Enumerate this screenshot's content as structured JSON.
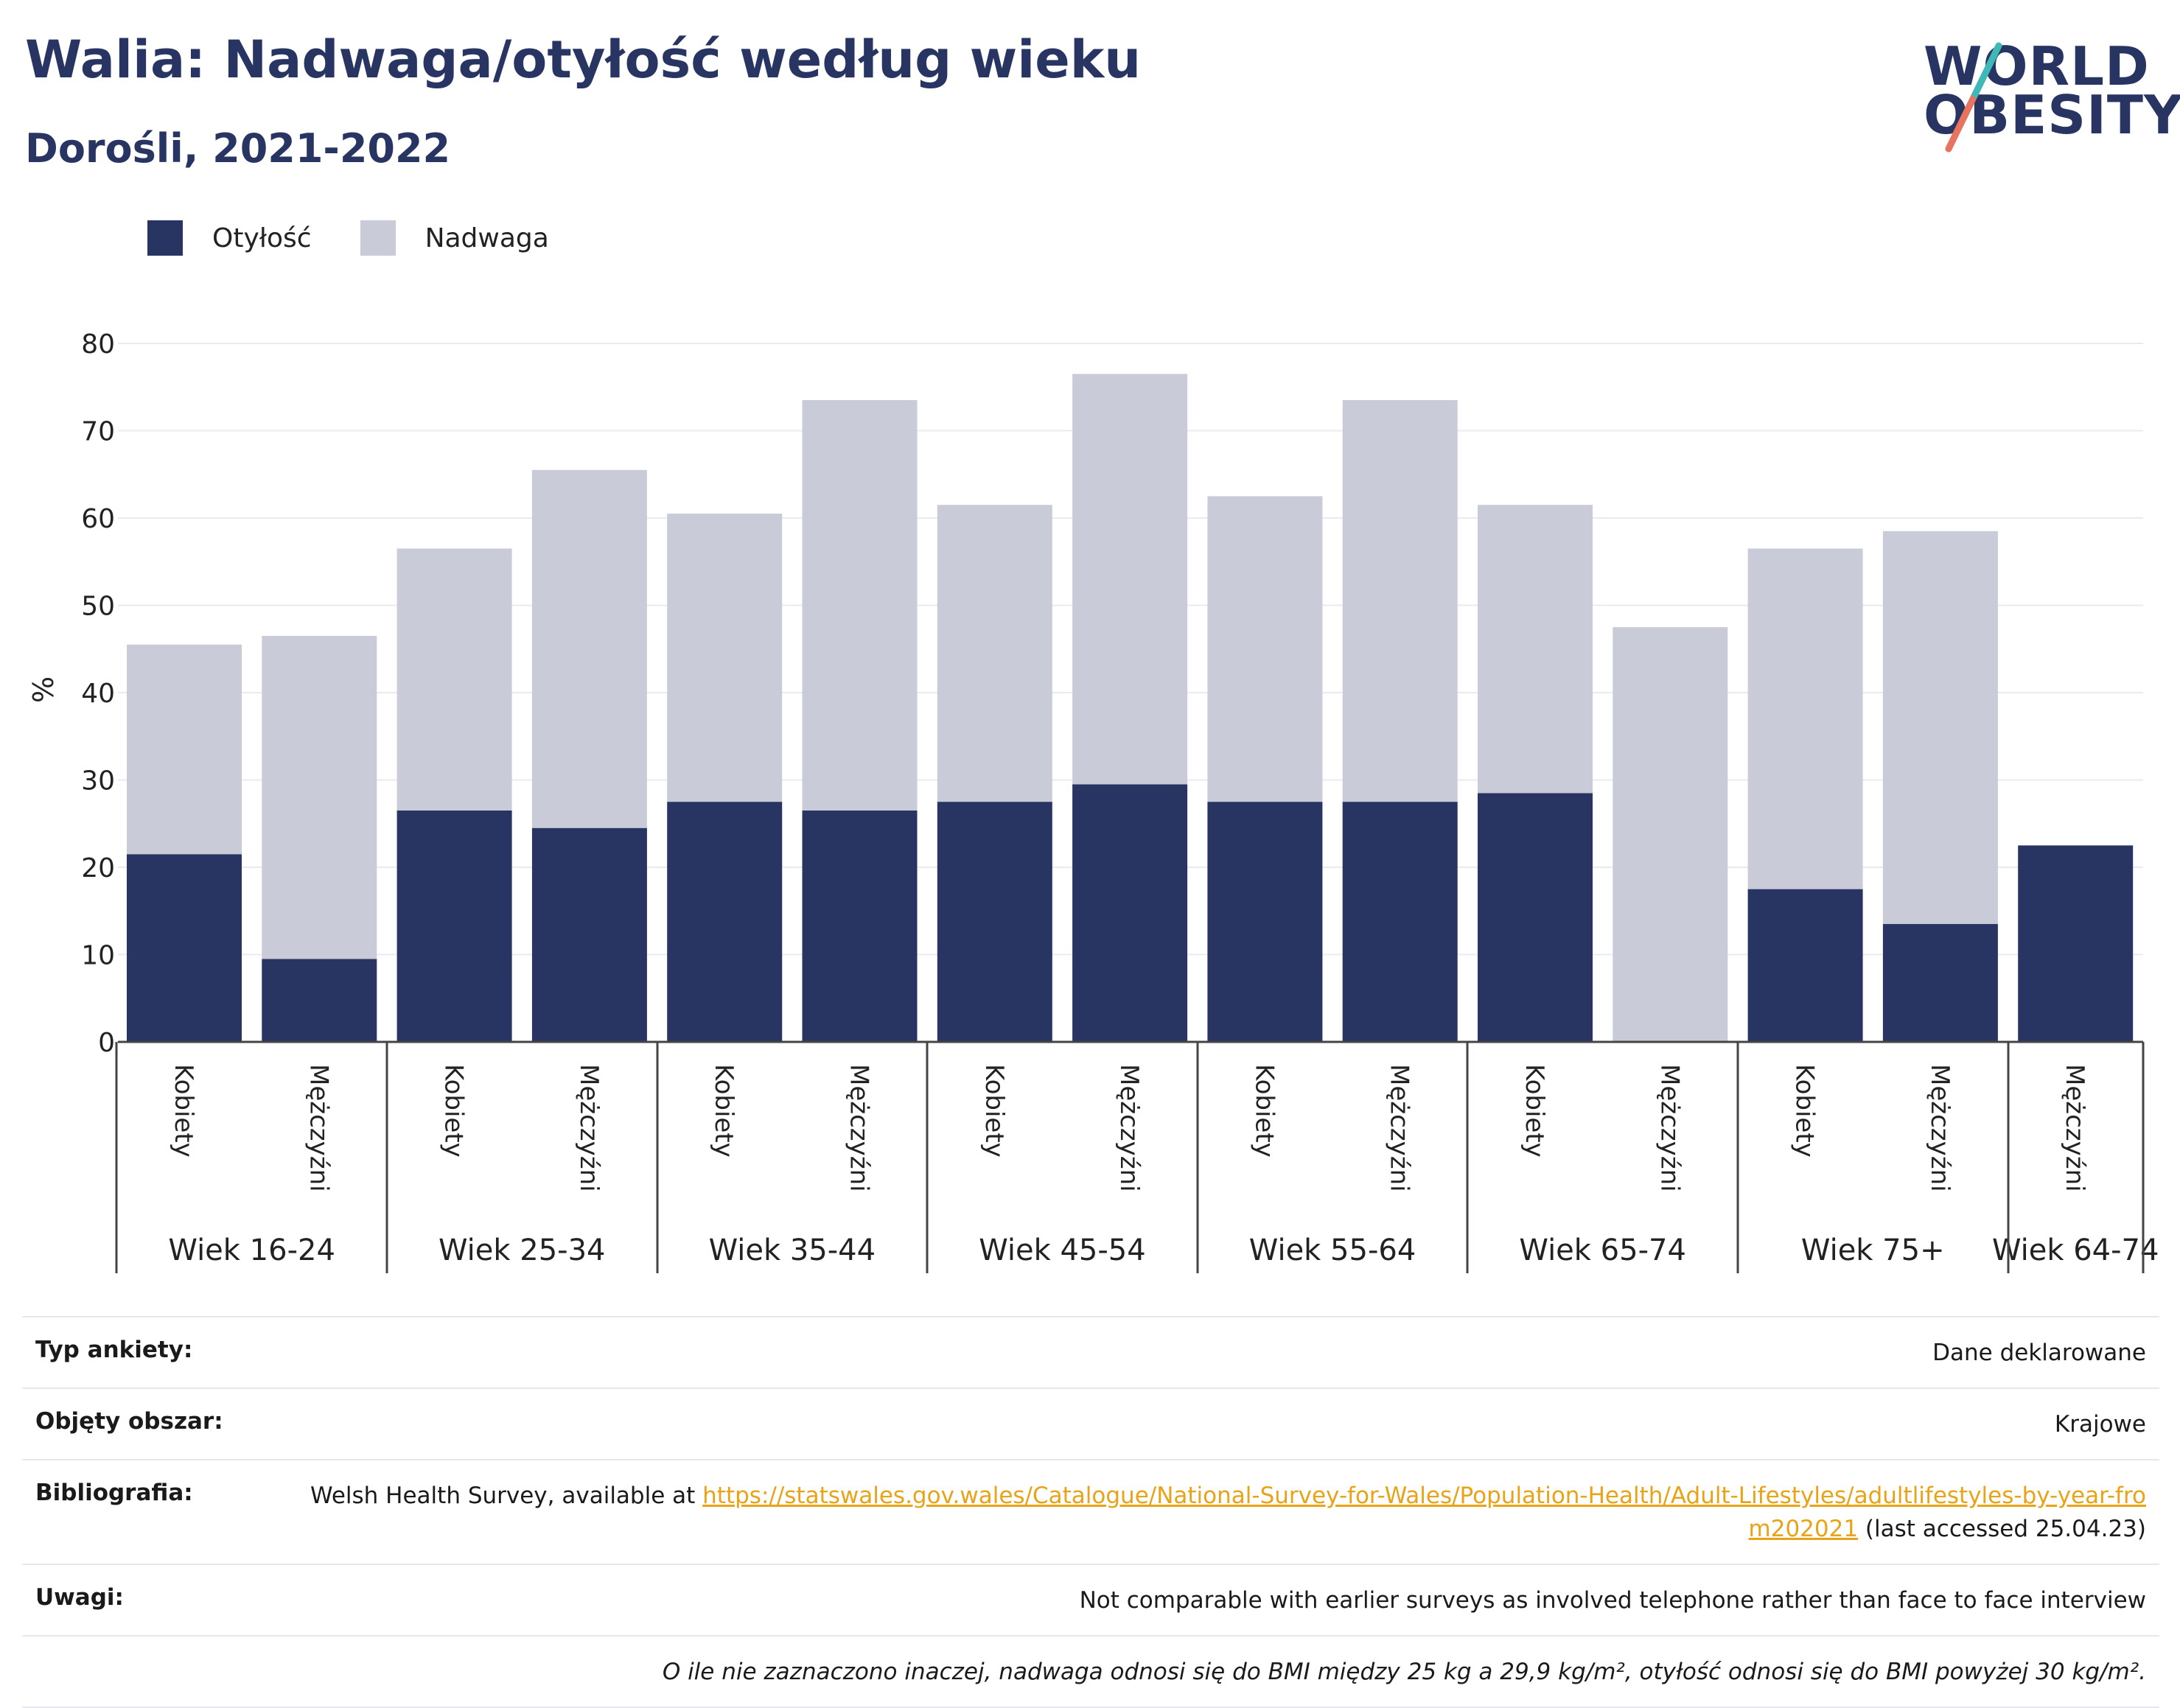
{
  "header": {
    "title": "Walia: Nadwaga/otyłość według wieku",
    "subtitle": "Dorośli, 2021-2022"
  },
  "logo": {
    "line1": "WORLD",
    "line2": "OBESITY"
  },
  "legend": [
    {
      "label": "Otyłość",
      "color": "#283462"
    },
    {
      "label": "Nadwaga",
      "color": "#c9ccd8"
    }
  ],
  "chart_data": {
    "type": "bar",
    "stacked": true,
    "ylabel": "%",
    "ylim": [
      0,
      80
    ],
    "yticks": [
      0,
      10,
      20,
      30,
      40,
      50,
      60,
      70,
      80
    ],
    "grid": true,
    "legend_position": "top-left",
    "groups": [
      {
        "label": "Wiek 16-24",
        "bars": [
          {
            "sex": "Kobiety",
            "obesity": 21.5,
            "overweight": 24
          },
          {
            "sex": "Mężczyźni",
            "obesity": 9.5,
            "overweight": 37
          }
        ]
      },
      {
        "label": "Wiek 25-34",
        "bars": [
          {
            "sex": "Kobiety",
            "obesity": 26.5,
            "overweight": 30
          },
          {
            "sex": "Mężczyźni",
            "obesity": 24.5,
            "overweight": 41
          }
        ]
      },
      {
        "label": "Wiek 35-44",
        "bars": [
          {
            "sex": "Kobiety",
            "obesity": 27.5,
            "overweight": 33
          },
          {
            "sex": "Mężczyźni",
            "obesity": 26.5,
            "overweight": 47
          }
        ]
      },
      {
        "label": "Wiek 45-54",
        "bars": [
          {
            "sex": "Kobiety",
            "obesity": 27.5,
            "overweight": 34
          },
          {
            "sex": "Mężczyźni",
            "obesity": 29.5,
            "overweight": 47
          }
        ]
      },
      {
        "label": "Wiek 55-64",
        "bars": [
          {
            "sex": "Kobiety",
            "obesity": 27.5,
            "overweight": 35
          },
          {
            "sex": "Mężczyźni",
            "obesity": 27.5,
            "overweight": 46
          }
        ]
      },
      {
        "label": "Wiek 65-74",
        "bars": [
          {
            "sex": "Kobiety",
            "obesity": 28.5,
            "overweight": 33
          },
          {
            "sex": "Mężczyźni",
            "obesity": 0,
            "overweight": 47.5
          }
        ]
      },
      {
        "label": "Wiek 75+",
        "bars": [
          {
            "sex": "Kobiety",
            "obesity": 17.5,
            "overweight": 39
          },
          {
            "sex": "Mężczyźni",
            "obesity": 13.5,
            "overweight": 45
          }
        ]
      },
      {
        "label": "Wiek 64-74",
        "bars": [
          {
            "sex": "Mężczyźni",
            "obesity": 22.5,
            "overweight": 0
          }
        ]
      }
    ]
  },
  "info": {
    "survey_type": {
      "label": "Typ ankiety:",
      "value": "Dane deklarowane"
    },
    "coverage": {
      "label": "Objęty obszar:",
      "value": "Krajowe"
    },
    "bibliography": {
      "label": "Bibliografia:",
      "before": "Welsh Health Survey, available at ",
      "link": "https://statswales.gov.wales/Catalogue/National-Survey-for-Wales/Population-Health/Adult-Lifestyles/adultlifestyles-by-year-from202021",
      "after": " (last accessed 25.04.23)"
    },
    "notes": {
      "label": "Uwagi:",
      "value": "Not comparable with earlier surveys as involved telephone rather than face to face interview"
    },
    "footnote": "O ile nie zaznaczono inaczej, nadwaga odnosi się do BMI między 25 kg a 29,9 kg/m², otyłość odnosi się do BMI powyżej 30 kg/m²."
  }
}
